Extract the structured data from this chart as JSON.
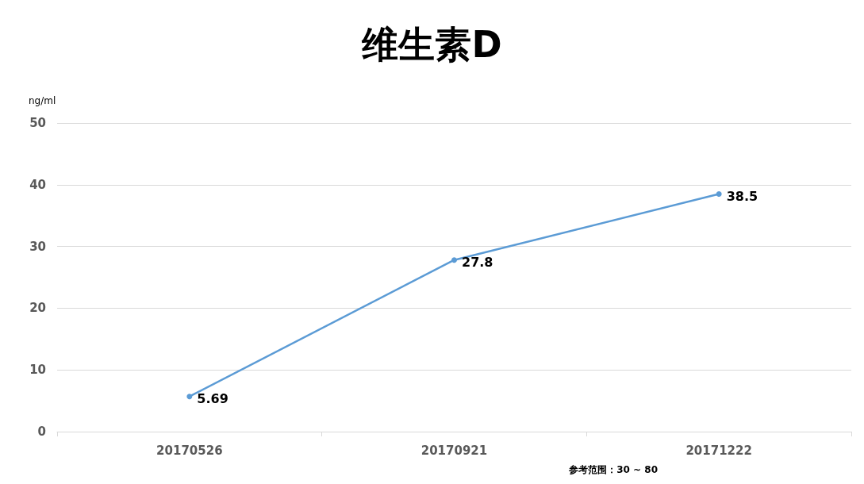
{
  "chart_data": {
    "type": "line",
    "title": "维生素D",
    "ylabel": "ng/ml",
    "categories": [
      "20170526",
      "20170921",
      "20171222"
    ],
    "series": [
      {
        "color": "#5b9bd5",
        "values": [
          5.69,
          27.8,
          38.5
        ]
      }
    ],
    "ylim": [
      0,
      50
    ],
    "yticks": [
      0,
      10,
      20,
      30,
      40,
      50
    ],
    "grid": "y",
    "marker": "circle",
    "line_style": "solid",
    "data_labels": true,
    "annotations": [
      "参考范围：30 ~ 80"
    ]
  }
}
